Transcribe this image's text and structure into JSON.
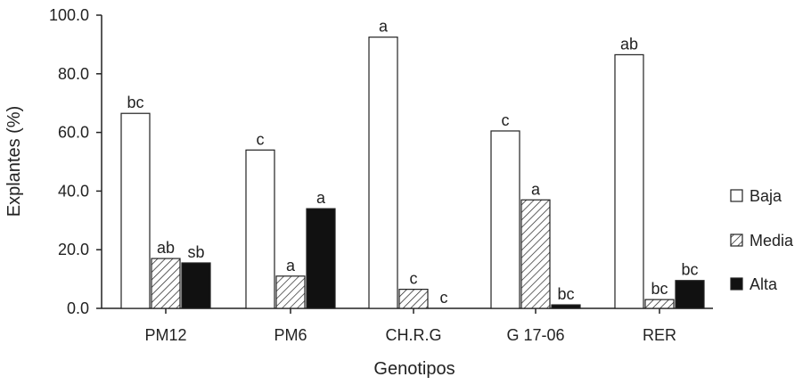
{
  "chart_data": {
    "type": "bar",
    "title": "",
    "xlabel": "Genotipos",
    "ylabel": "Explantes (%)",
    "ylim": [
      0,
      100
    ],
    "yticks": [
      "0.0",
      "20.0",
      "40.0",
      "60.0",
      "80.0",
      "100.0"
    ],
    "categories": [
      "PM12",
      "PM6",
      "CH.R.G",
      "G 17-06",
      "RER"
    ],
    "series": [
      {
        "name": "Baja",
        "pattern": "white",
        "values": [
          66.5,
          54.0,
          92.5,
          60.5,
          86.5
        ],
        "labels": [
          "bc",
          "c",
          "a",
          "c",
          "ab"
        ]
      },
      {
        "name": "Media",
        "pattern": "hatch",
        "values": [
          17.0,
          11.0,
          6.5,
          37.0,
          3.0
        ],
        "labels": [
          "ab",
          "a",
          "c",
          "a",
          "bc"
        ]
      },
      {
        "name": "Alta",
        "pattern": "black",
        "values": [
          15.5,
          34.0,
          0,
          1.2,
          9.5
        ],
        "labels": [
          "sb",
          "a",
          "c",
          "bc",
          "bc"
        ]
      }
    ],
    "legend_position": "right",
    "grid": false
  },
  "colors": {
    "axis": "#222222",
    "bar_fill_light": "#ffffff",
    "bar_fill_dark": "#111111",
    "stroke": "#222222"
  }
}
